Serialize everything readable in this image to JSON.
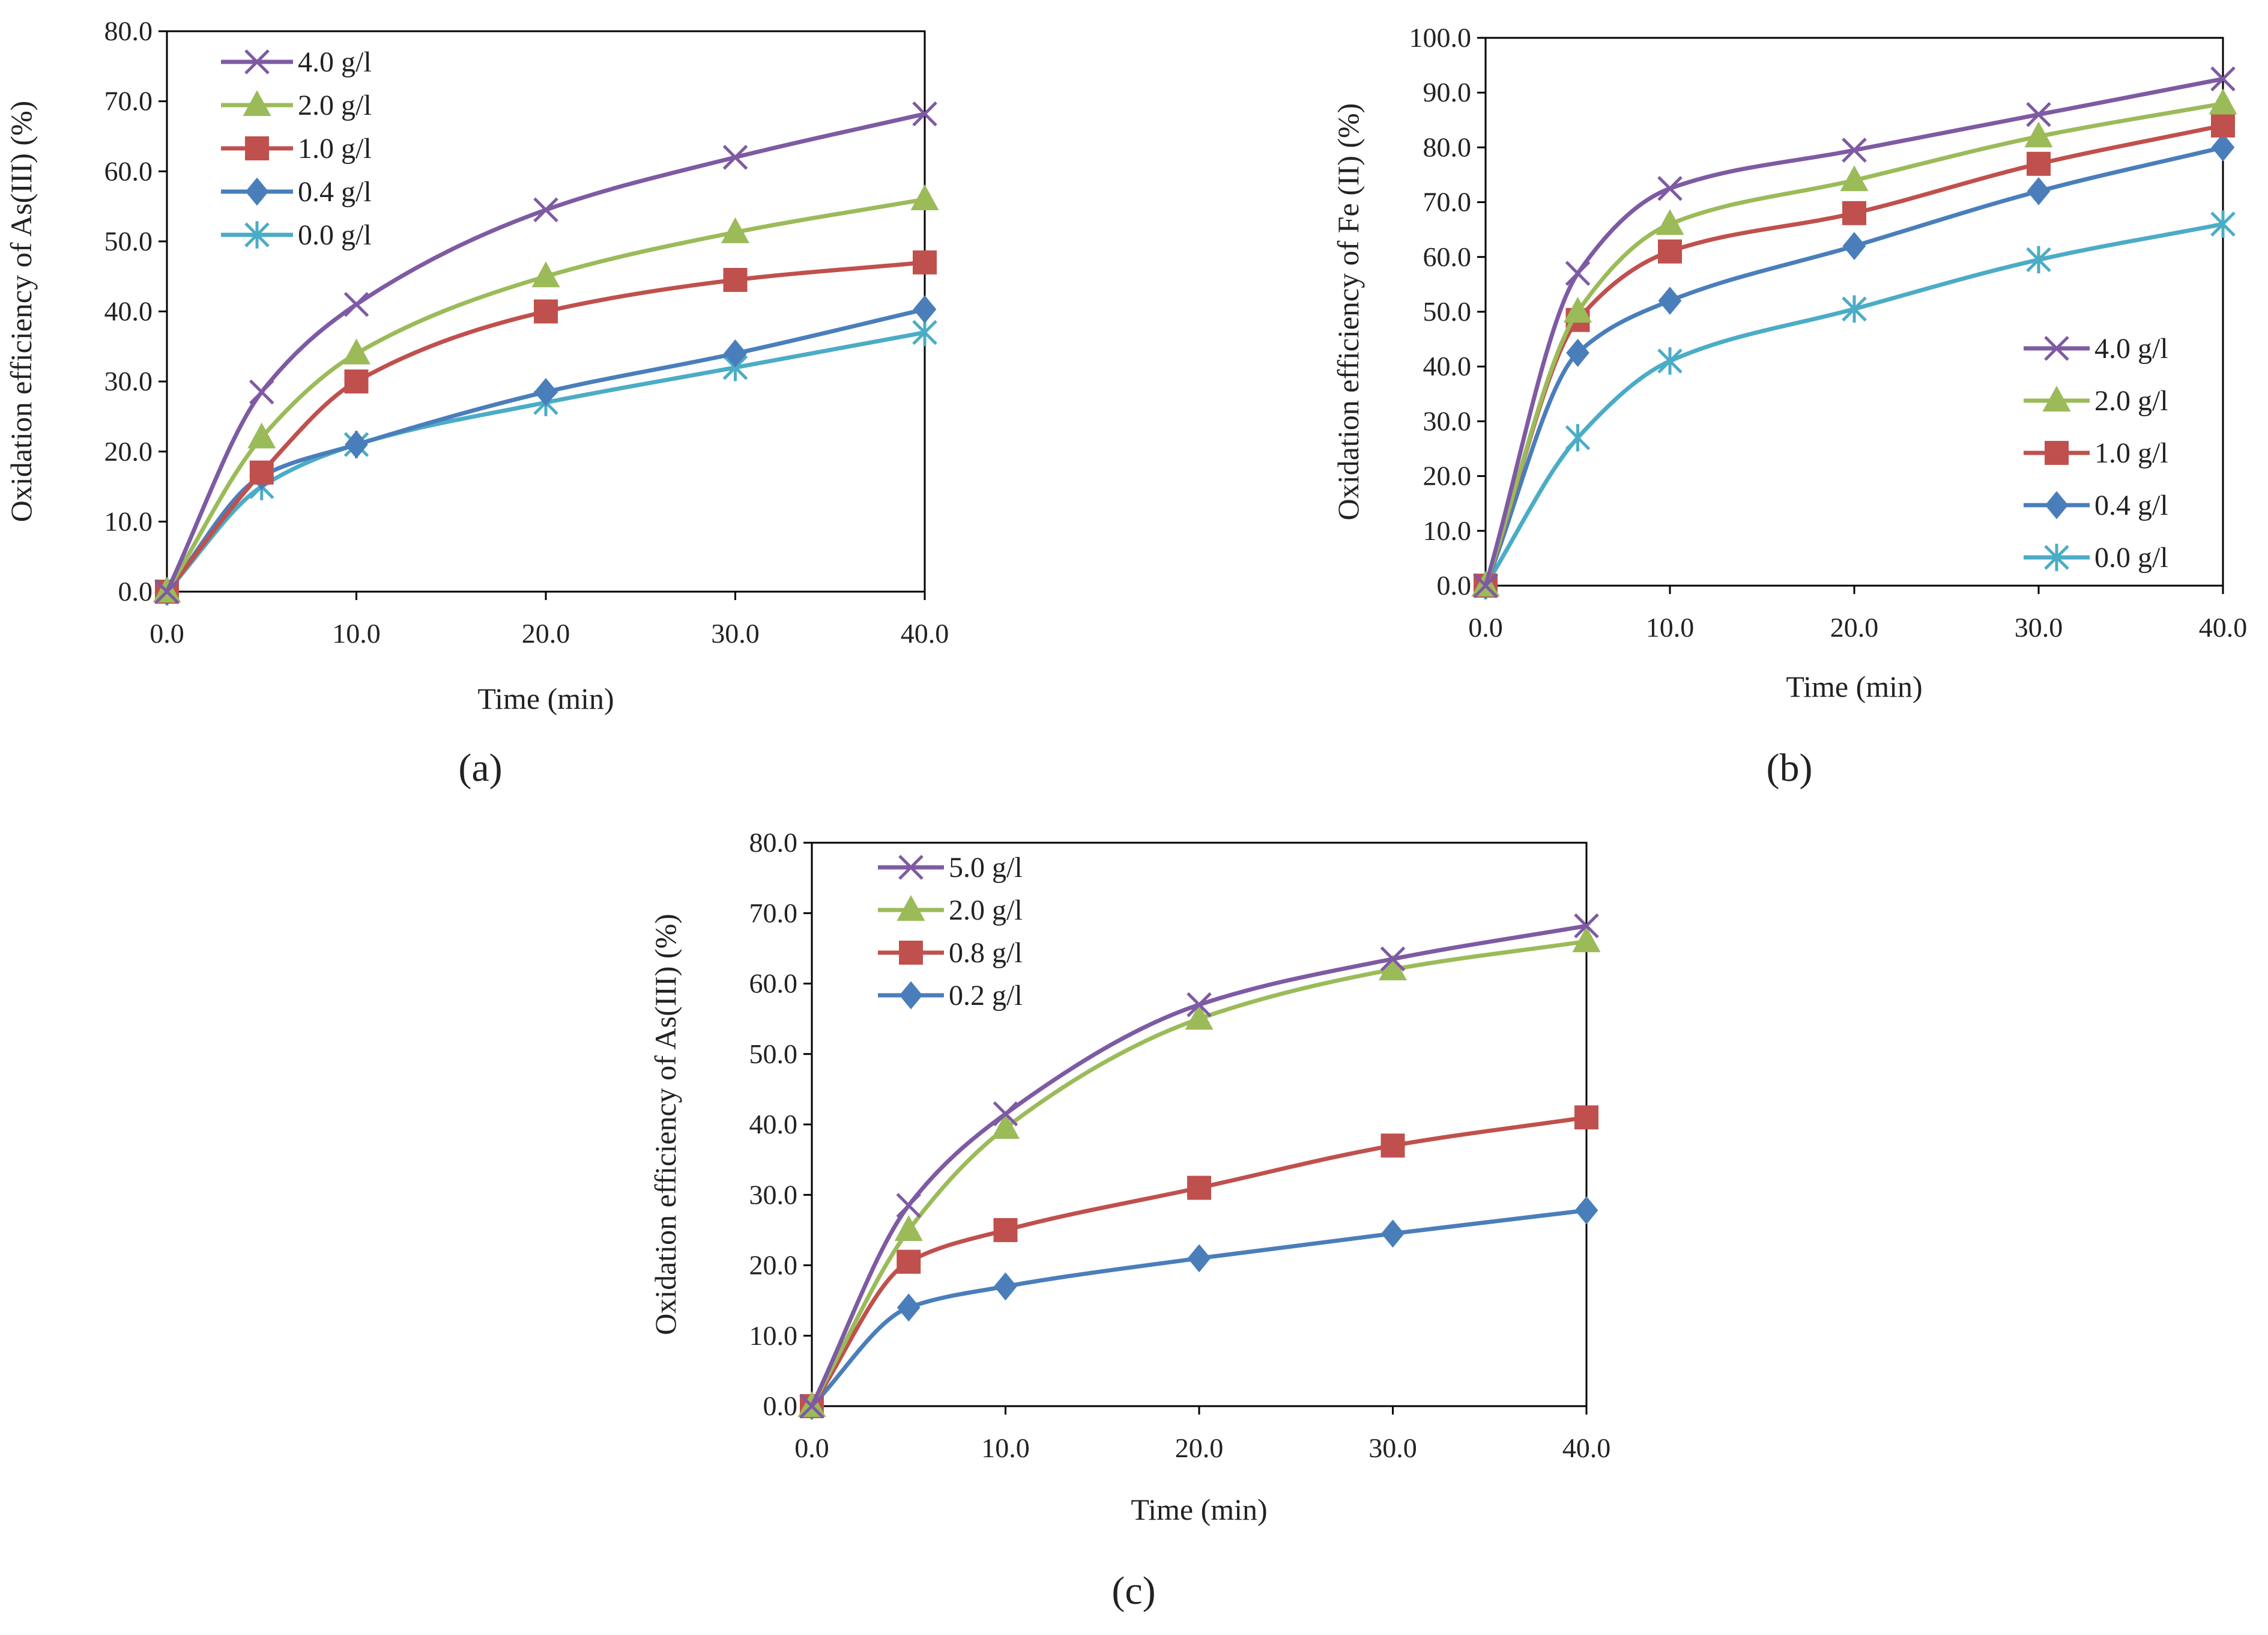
{
  "chart_data": [
    {
      "id": "a",
      "panel_label": "(a)",
      "type": "line",
      "xlabel": "Time (min)",
      "ylabel": "Oxidation efficiency of As(III) (%)",
      "x": [
        0.0,
        5.0,
        10.0,
        20.0,
        30.0,
        40.0
      ],
      "xticks": [
        0,
        10,
        20,
        30,
        40
      ],
      "xtick_labels": [
        "0.0",
        "10.0",
        "20.0",
        "30.0",
        "40.0"
      ],
      "xlim": [
        0,
        40
      ],
      "ylim": [
        0,
        80
      ],
      "yticks": [
        0,
        10,
        20,
        30,
        40,
        50,
        60,
        70,
        80
      ],
      "ytick_labels": [
        "0.0",
        "10.0",
        "20.0",
        "30.0",
        "40.0",
        "50.0",
        "60.0",
        "70.0",
        "80.0"
      ],
      "legend_position": "top-left",
      "series": [
        {
          "name": "4.0 g/l",
          "color": "#7e5aa3",
          "marker": "x",
          "values": [
            0.0,
            28.5,
            41.0,
            54.5,
            62.0,
            68.2
          ]
        },
        {
          "name": "2.0 g/l",
          "color": "#9bbb59",
          "marker": "triangle",
          "values": [
            0.0,
            22.0,
            34.0,
            45.0,
            51.3,
            56.0
          ]
        },
        {
          "name": "1.0 g/l",
          "color": "#c0504d",
          "marker": "square",
          "values": [
            0.0,
            17.0,
            30.0,
            40.0,
            44.5,
            47.0
          ]
        },
        {
          "name": "0.4 g/l",
          "color": "#4a7ebb",
          "marker": "diamond",
          "values": [
            0.0,
            16.5,
            21.0,
            28.5,
            34.0,
            40.3
          ]
        },
        {
          "name": "0.0 g/l",
          "color": "#4bacc6",
          "marker": "asterisk",
          "values": [
            0.0,
            15.0,
            21.0,
            27.0,
            32.0,
            37.0
          ]
        }
      ]
    },
    {
      "id": "b",
      "panel_label": "(b)",
      "type": "line",
      "xlabel": "Time (min)",
      "ylabel": "Oxidation efficiency of Fe (II) (%)",
      "x": [
        0.0,
        5.0,
        10.0,
        20.0,
        30.0,
        40.0
      ],
      "xticks": [
        0,
        10,
        20,
        30,
        40
      ],
      "xtick_labels": [
        "0.0",
        "10.0",
        "20.0",
        "30.0",
        "40.0"
      ],
      "xlim": [
        0,
        40
      ],
      "ylim": [
        0,
        100
      ],
      "yticks": [
        0,
        10,
        20,
        30,
        40,
        50,
        60,
        70,
        80,
        90,
        100
      ],
      "ytick_labels": [
        "0.0",
        "10.0",
        "20.0",
        "30.0",
        "40.0",
        "50.0",
        "60.0",
        "70.0",
        "80.0",
        "90.0",
        "100.0"
      ],
      "legend_position": "bottom-right",
      "series": [
        {
          "name": "4.0 g/l",
          "color": "#7e5aa3",
          "marker": "x",
          "values": [
            0.0,
            57.0,
            72.5,
            79.5,
            86.0,
            92.5
          ]
        },
        {
          "name": "2.0 g/l",
          "color": "#9bbb59",
          "marker": "triangle",
          "values": [
            0.0,
            50.0,
            66.0,
            74.0,
            82.0,
            88.0
          ]
        },
        {
          "name": "1.0 g/l",
          "color": "#c0504d",
          "marker": "square",
          "values": [
            0.0,
            48.5,
            61.0,
            68.0,
            77.0,
            84.0
          ]
        },
        {
          "name": "0.4 g/l",
          "color": "#4a7ebb",
          "marker": "diamond",
          "values": [
            0.0,
            42.5,
            52.0,
            62.0,
            72.0,
            80.0
          ]
        },
        {
          "name": "0.0 g/l",
          "color": "#4bacc6",
          "marker": "asterisk",
          "values": [
            0.0,
            27.0,
            41.0,
            50.5,
            59.5,
            66.0
          ]
        }
      ]
    },
    {
      "id": "c",
      "panel_label": "(c)",
      "type": "line",
      "xlabel": "Time (min)",
      "ylabel": "Oxidation efficiency of As(III) (%)",
      "x": [
        0.0,
        5.0,
        10.0,
        20.0,
        30.0,
        40.0
      ],
      "xticks": [
        0,
        10,
        20,
        30,
        40
      ],
      "xtick_labels": [
        "0.0",
        "10.0",
        "20.0",
        "30.0",
        "40.0"
      ],
      "xlim": [
        0,
        40
      ],
      "ylim": [
        0,
        80
      ],
      "yticks": [
        0,
        10,
        20,
        30,
        40,
        50,
        60,
        70,
        80
      ],
      "ytick_labels": [
        "0.0",
        "10.0",
        "20.0",
        "30.0",
        "40.0",
        "50.0",
        "60.0",
        "70.0",
        "80.0"
      ],
      "legend_position": "top-left",
      "series": [
        {
          "name": "5.0 g/l",
          "color": "#7e5aa3",
          "marker": "x",
          "values": [
            0.0,
            28.5,
            41.5,
            57.0,
            63.5,
            68.2
          ]
        },
        {
          "name": "2.0 g/l",
          "color": "#9bbb59",
          "marker": "triangle",
          "values": [
            0.0,
            25.0,
            39.5,
            55.0,
            62.0,
            66.0
          ]
        },
        {
          "name": "0.8 g/l",
          "color": "#c0504d",
          "marker": "square",
          "values": [
            0.0,
            20.5,
            25.0,
            31.0,
            37.0,
            41.0
          ]
        },
        {
          "name": "0.2 g/l",
          "color": "#4a7ebb",
          "marker": "diamond",
          "values": [
            0.0,
            14.0,
            17.0,
            21.0,
            24.5,
            27.8
          ]
        }
      ]
    }
  ]
}
